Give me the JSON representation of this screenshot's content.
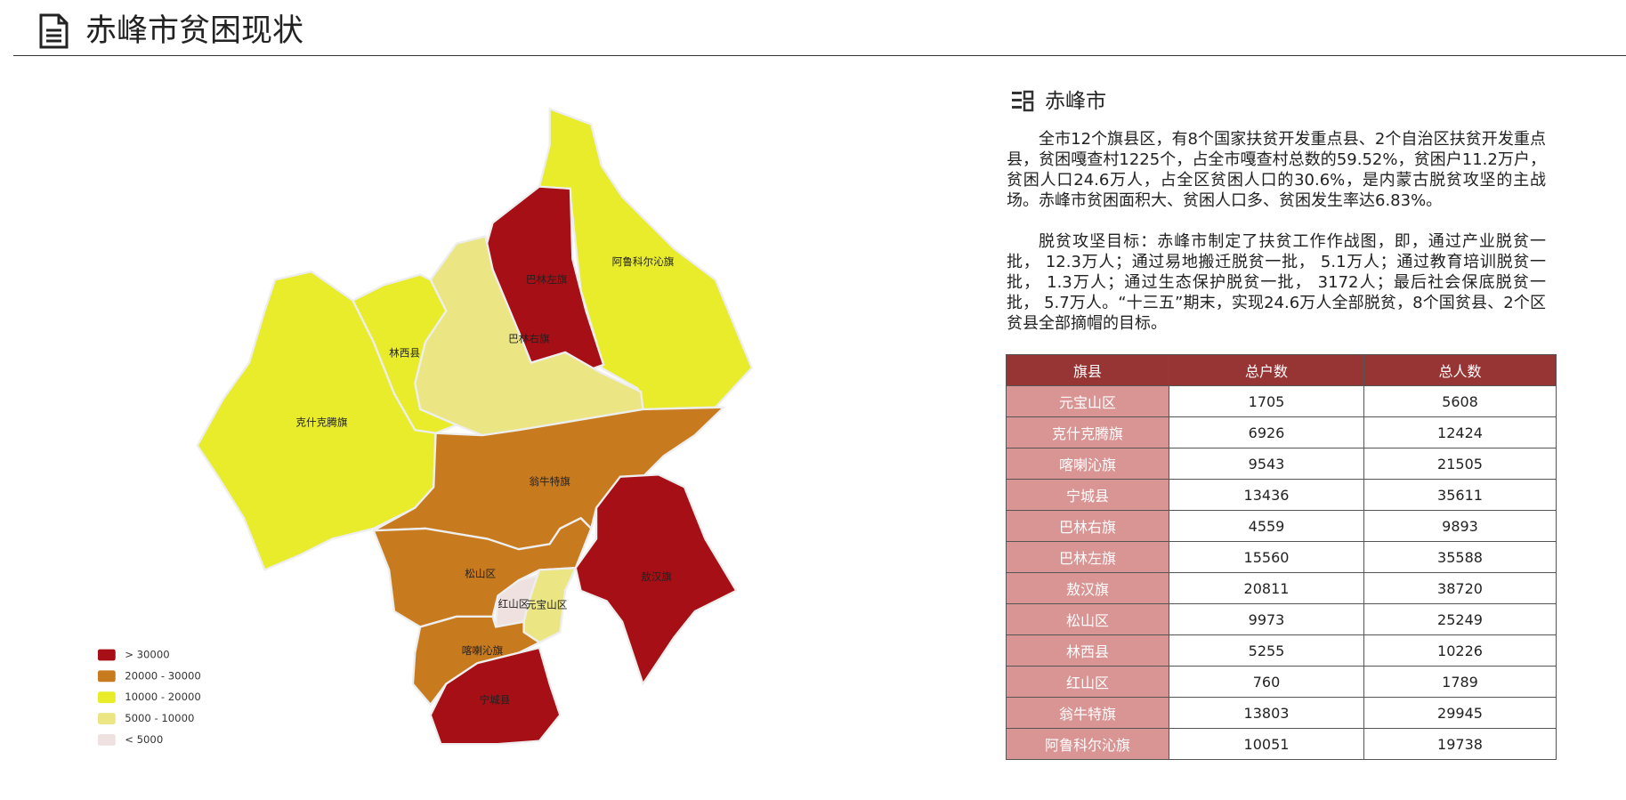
{
  "header": {
    "title": "赤峰市贫困现状"
  },
  "map": {
    "regions": [
      {
        "name": "阿鲁科尔沁旗",
        "color": "#e8ec2a"
      },
      {
        "name": "巴林左旗",
        "color": "#a50f15"
      },
      {
        "name": "巴林右旗",
        "color": "#ebe683"
      },
      {
        "name": "林西县",
        "color": "#e8ec2a"
      },
      {
        "name": "克什克腾旗",
        "color": "#e8ec2a"
      },
      {
        "name": "翁牛特旗",
        "color": "#c87a1f"
      },
      {
        "name": "敖汉旗",
        "color": "#a50f15"
      },
      {
        "name": "松山区",
        "color": "#c87a1f"
      },
      {
        "name": "红山区",
        "color": "#f0e1e1"
      },
      {
        "name": "元宝山区",
        "color": "#ebe683"
      },
      {
        "name": "喀喇沁旗",
        "color": "#c87a1f"
      },
      {
        "name": "宁城县",
        "color": "#a50f15"
      }
    ],
    "legend": [
      {
        "label": "> 30000",
        "color": "#a50f15"
      },
      {
        "label": "20000 - 30000",
        "color": "#c87a1f"
      },
      {
        "label": "10000 - 20000",
        "color": "#e8ec2a"
      },
      {
        "label": "5000 - 10000",
        "color": "#ebe683"
      },
      {
        "label": "< 5000",
        "color": "#f0e1e1"
      }
    ]
  },
  "section": {
    "title": "赤峰市",
    "paragraphs": [
      "全市12个旗县区，有8个国家扶贫开发重点县、2个自治区扶贫开发重点县，贫困嘎查村1225个，占全市嘎查村总数的59.52%，贫困户11.2万户，贫困人口24.6万人，占全区贫困人口的30.6%，是内蒙古脱贫攻坚的主战场。赤峰市贫困面积大、贫困人口多、贫困发生率达6.83%。",
      "脱贫攻坚目标：赤峰市制定了扶贫工作作战图，即，通过产业脱贫一批， 12.3万人；通过易地搬迁脱贫一批， 5.1万人；通过教育培训脱贫一批， 1.3万人；通过生态保护脱贫一批， 3172人；最后社会保底脱贫一批， 5.7万人。“十三五”期末，实现24.6万人全部脱贫，8个国贫县、2个区贫县全部摘帽的目标。"
    ]
  },
  "table": {
    "header": [
      "旗县",
      "总户数",
      "总人数"
    ],
    "rows": [
      [
        "元宝山区",
        1705,
        5608
      ],
      [
        "克什克腾旗",
        6926,
        12424
      ],
      [
        "喀喇沁旗",
        9543,
        21505
      ],
      [
        "宁城县",
        13436,
        35611
      ],
      [
        "巴林右旗",
        4559,
        9893
      ],
      [
        "巴林左旗",
        15560,
        35588
      ],
      [
        "敖汉旗",
        20811,
        38720
      ],
      [
        "松山区",
        9973,
        25249
      ],
      [
        "林西县",
        5255,
        10226
      ],
      [
        "红山区",
        760,
        1789
      ],
      [
        "翁牛特旗",
        13803,
        29945
      ],
      [
        "阿鲁科尔沁旗",
        10051,
        19738
      ]
    ]
  }
}
